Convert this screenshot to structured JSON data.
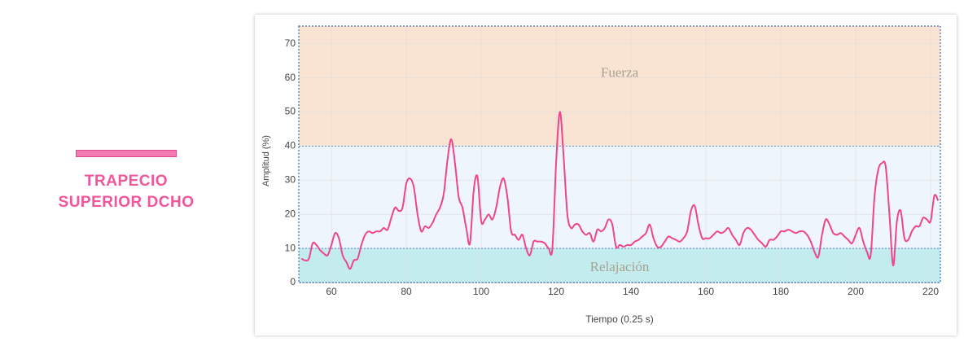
{
  "chart_data": {
    "type": "line",
    "title": "TRAPECIO SUPERIOR DCHO",
    "x_label": "Tiempo (0.25 s)",
    "y_label": "Amplitud (%)",
    "xlim": [
      51.3,
      222.6
    ],
    "ylim": [
      0,
      75.2
    ],
    "xticks": [
      60,
      80,
      100,
      120,
      140,
      160,
      180,
      200,
      220
    ],
    "yticks": [
      0,
      10,
      20,
      30,
      40,
      50,
      60,
      70
    ],
    "grid": true,
    "regions": [
      {
        "label": "Fuerza",
        "range": [
          40,
          75.2
        ],
        "color": "#f9e4d3"
      },
      {
        "range": [
          10,
          40
        ],
        "color": "#eef5fb"
      },
      {
        "label": "Relajación",
        "range": [
          0,
          10
        ],
        "color": "#c3ecef"
      }
    ],
    "series": [
      {
        "color": "#f0448c",
        "x": [
          52,
          53,
          54,
          55,
          56,
          57,
          58,
          59,
          60,
          61,
          62,
          63,
          64,
          65,
          66,
          67,
          68,
          69,
          70,
          71,
          72,
          73,
          74,
          75,
          76,
          77,
          78,
          79,
          80,
          81,
          82,
          83,
          84,
          85,
          86,
          87,
          88,
          89,
          90,
          91,
          92,
          93,
          94,
          95,
          96,
          97,
          98,
          99,
          100,
          101,
          102,
          103,
          104,
          105,
          106,
          107,
          108,
          109,
          110,
          111,
          112,
          113,
          114,
          115,
          116,
          117,
          118,
          119,
          120,
          121,
          122,
          123,
          124,
          125,
          126,
          127,
          128,
          129,
          130,
          131,
          132,
          133,
          134,
          135,
          136,
          137,
          138,
          139,
          140,
          141,
          142,
          143,
          144,
          145,
          146,
          147,
          148,
          149,
          150,
          151,
          152,
          153,
          154,
          155,
          156,
          157,
          158,
          159,
          160,
          161,
          162,
          163,
          164,
          165,
          166,
          167,
          168,
          169,
          170,
          171,
          172,
          173,
          174,
          175,
          176,
          177,
          178,
          179,
          180,
          181,
          182,
          183,
          184,
          185,
          186,
          187,
          188,
          189,
          190,
          191,
          192,
          193,
          194,
          195,
          196,
          197,
          198,
          199,
          200,
          201,
          202,
          203,
          204,
          205,
          206,
          207,
          208,
          209,
          210,
          211,
          212,
          213,
          214,
          215,
          216,
          217,
          218,
          219,
          220,
          221,
          222
        ],
        "values": [
          7,
          6.5,
          7,
          11.5,
          11,
          9.5,
          8.5,
          8,
          11,
          14.5,
          13,
          8,
          6,
          4,
          6.5,
          7,
          11,
          14,
          15,
          14.5,
          15,
          15,
          16,
          15.5,
          19,
          22,
          21,
          22,
          29,
          30.5,
          28,
          20,
          15,
          16.5,
          16,
          17.5,
          20,
          22,
          26,
          36,
          42,
          35,
          25,
          22,
          16,
          11.5,
          27,
          31,
          18,
          18.5,
          20,
          18.5,
          22,
          28,
          30.5,
          25,
          15,
          14,
          12.5,
          14,
          10,
          8,
          12,
          12,
          12,
          11.5,
          10,
          10,
          35,
          50,
          37,
          20,
          16,
          17,
          17,
          15,
          14,
          14.5,
          12,
          15.5,
          15,
          16,
          18.5,
          17,
          10.5,
          11,
          10.5,
          11,
          11,
          12,
          12.5,
          13.5,
          14.5,
          17,
          13,
          10.5,
          10.5,
          12,
          13.5,
          13,
          12.5,
          12,
          13,
          15,
          21,
          22.5,
          17,
          13,
          13,
          13,
          14,
          15,
          14.5,
          15,
          16,
          14,
          12.5,
          11,
          14.5,
          16,
          15.5,
          14,
          12.5,
          11.5,
          10.5,
          12.5,
          12.5,
          13.5,
          15,
          15,
          15.5,
          15,
          14.5,
          15,
          15,
          14,
          12,
          9,
          7.5,
          14,
          18.5,
          17,
          14.5,
          14,
          14.5,
          13.5,
          12.5,
          11.5,
          14,
          16,
          12,
          9,
          8,
          25,
          33,
          35,
          34,
          20,
          5,
          18,
          21,
          13,
          12.5,
          15,
          16.5,
          16.5,
          19,
          18.5,
          18,
          25.5,
          24
        ]
      }
    ]
  }
}
